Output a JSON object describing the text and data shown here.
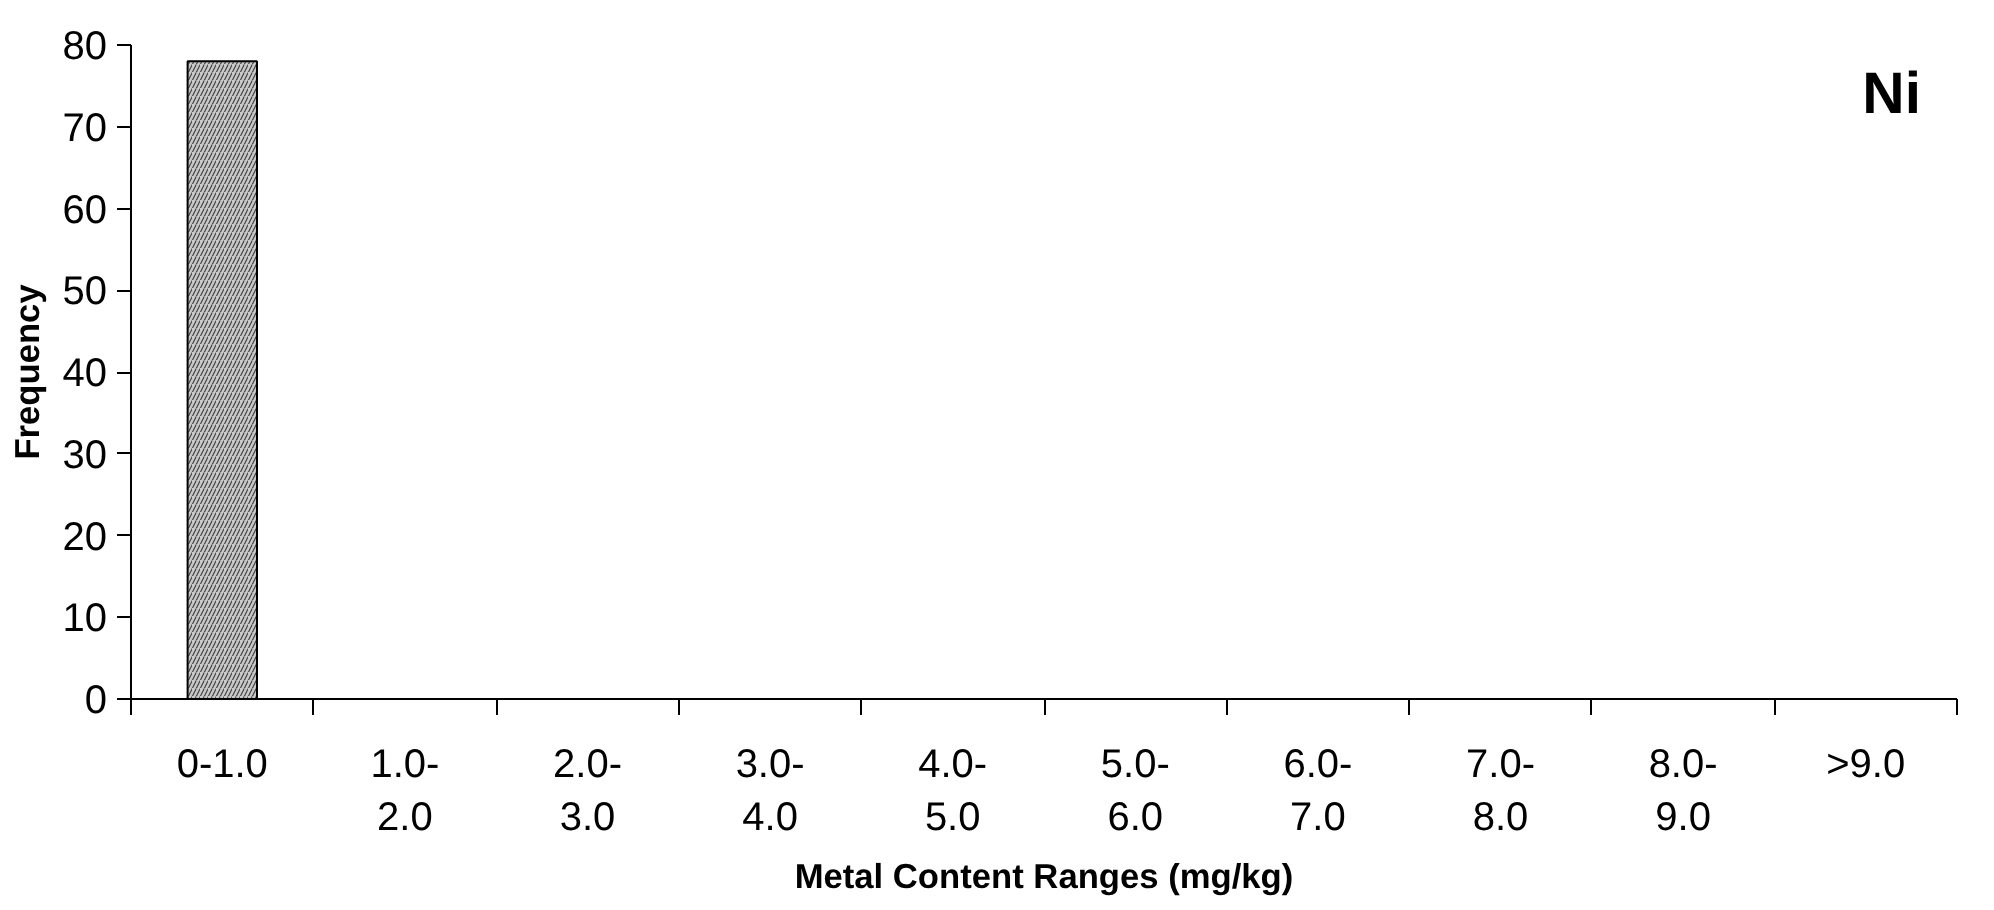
{
  "chart_data": {
    "type": "bar",
    "title": "Ni",
    "xlabel": "Metal Content Ranges (mg/kg)",
    "ylabel": "Frequency",
    "categories": [
      "0-1.0",
      "1.0-\n2.0",
      "2.0-\n3.0",
      "3.0-\n4.0",
      "4.0-\n5.0",
      "5.0-\n6.0",
      "6.0-\n7.0",
      "7.0-\n8.0",
      "8.0-\n9.0",
      ">9.0"
    ],
    "values": [
      78,
      0,
      0,
      0,
      0,
      0,
      0,
      0,
      0,
      0
    ],
    "color": "#c8c8c8",
    "ylim": [
      0,
      80
    ],
    "yticks": [
      0,
      10,
      20,
      30,
      40,
      50,
      60,
      70,
      80
    ],
    "grid": false
  }
}
